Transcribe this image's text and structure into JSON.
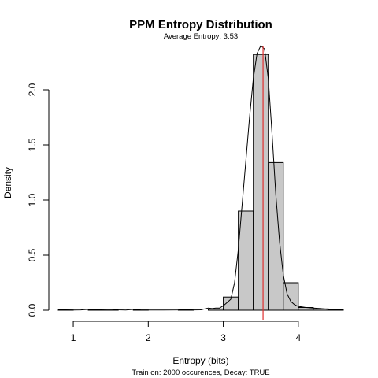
{
  "chart_data": {
    "type": "bar",
    "title": "PPM Entropy Distribution",
    "subtitle": "Average Entropy: 3.53",
    "xlabel": "Entropy (bits)",
    "ylabel": "Density",
    "note": "Train on: 2000 occurences, Decay: TRUE",
    "xlim": [
      0.8,
      4.6
    ],
    "ylim": [
      0,
      2.4
    ],
    "x_ticks": [
      1,
      2,
      3,
      4
    ],
    "y_ticks": [
      0.0,
      0.5,
      1.0,
      1.5,
      2.0
    ],
    "y_tick_labels": [
      "0.0",
      "0.5",
      "1.0",
      "1.5",
      "2.0"
    ],
    "bins": [
      {
        "from": 0.8,
        "to": 1.0,
        "value": 0.002
      },
      {
        "from": 1.0,
        "to": 1.2,
        "value": 0.0
      },
      {
        "from": 1.2,
        "to": 1.4,
        "value": 0.002
      },
      {
        "from": 1.4,
        "to": 1.6,
        "value": 0.002
      },
      {
        "from": 1.6,
        "to": 1.8,
        "value": 0.0
      },
      {
        "from": 1.8,
        "to": 2.0,
        "value": 0.002
      },
      {
        "from": 2.0,
        "to": 2.2,
        "value": 0.0
      },
      {
        "from": 2.2,
        "to": 2.4,
        "value": 0.0
      },
      {
        "from": 2.4,
        "to": 2.6,
        "value": 0.002
      },
      {
        "from": 2.6,
        "to": 2.8,
        "value": 0.0
      },
      {
        "from": 2.8,
        "to": 3.0,
        "value": 0.012
      },
      {
        "from": 3.0,
        "to": 3.2,
        "value": 0.12
      },
      {
        "from": 3.2,
        "to": 3.4,
        "value": 0.9
      },
      {
        "from": 3.4,
        "to": 3.6,
        "value": 2.32
      },
      {
        "from": 3.6,
        "to": 3.8,
        "value": 1.34
      },
      {
        "from": 3.8,
        "to": 4.0,
        "value": 0.25
      },
      {
        "from": 4.0,
        "to": 4.2,
        "value": 0.025
      },
      {
        "from": 4.2,
        "to": 4.4,
        "value": 0.012
      },
      {
        "from": 4.4,
        "to": 4.6,
        "value": 0.005
      }
    ],
    "density_curve": {
      "x": [
        0.8,
        0.9,
        1.0,
        1.1,
        1.2,
        1.3,
        1.4,
        1.5,
        1.6,
        1.7,
        1.8,
        1.9,
        2.0,
        2.2,
        2.4,
        2.5,
        2.6,
        2.7,
        2.8,
        2.85,
        2.9,
        2.95,
        3.0,
        3.05,
        3.1,
        3.15,
        3.2,
        3.25,
        3.3,
        3.35,
        3.4,
        3.45,
        3.5,
        3.55,
        3.6,
        3.65,
        3.7,
        3.75,
        3.8,
        3.85,
        3.9,
        3.95,
        4.0,
        4.05,
        4.1,
        4.2,
        4.3,
        4.4,
        4.5,
        4.6
      ],
      "y": [
        0.005,
        0.004,
        0.002,
        0.003,
        0.008,
        0.004,
        0.008,
        0.01,
        0.004,
        0.002,
        0.008,
        0.003,
        0.002,
        0.002,
        0.003,
        0.008,
        0.003,
        0.004,
        0.02,
        0.015,
        0.02,
        0.02,
        0.04,
        0.07,
        0.1,
        0.25,
        0.55,
        0.95,
        1.35,
        1.75,
        2.1,
        2.33,
        2.4,
        2.37,
        2.1,
        1.6,
        1.05,
        0.62,
        0.32,
        0.15,
        0.08,
        0.05,
        0.035,
        0.03,
        0.025,
        0.02,
        0.015,
        0.008,
        0.005,
        0.003
      ]
    },
    "mean_value": 3.53,
    "grid": false,
    "colors": {
      "bar_fill": "#c8c8c8",
      "bar_stroke": "#000000",
      "density_line": "#000000",
      "mean_line": "#e03030"
    }
  }
}
